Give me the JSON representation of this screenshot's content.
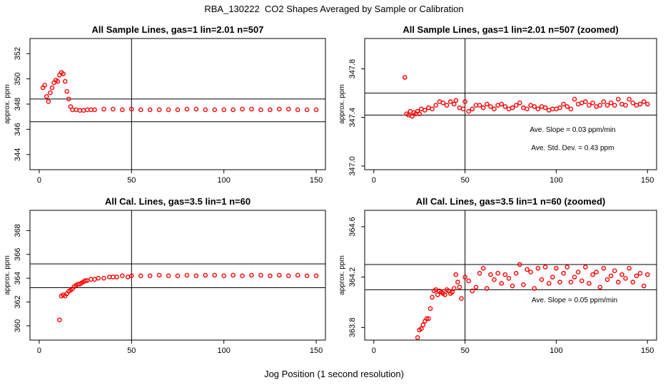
{
  "page": {
    "title": "RBA_130222  CO2 Shapes Averaged by Sample or Calibration",
    "xlabel": "Jog Position (1 second resolution)"
  },
  "colors": {
    "points": "#ff0000",
    "lines": "#000000"
  },
  "chart_data": [
    {
      "type": "scatter",
      "title": "All Sample Lines, gas=1 lin=2.01 n=507",
      "ylabel": "approx. ppm",
      "xlim": [
        -5,
        155
      ],
      "ylim": [
        342.8,
        353.2
      ],
      "xticks": [
        0,
        50,
        100,
        150
      ],
      "yticks": [
        344,
        346,
        348,
        350,
        352
      ],
      "hlines": [
        348.4,
        346.6
      ],
      "vline": 50,
      "x": [
        2,
        3,
        4,
        5,
        6,
        7,
        8,
        9,
        10,
        11,
        12,
        13,
        14,
        15,
        16,
        17,
        18,
        20,
        22,
        24,
        26,
        28,
        30,
        35,
        40,
        45,
        50,
        55,
        60,
        65,
        70,
        75,
        80,
        85,
        90,
        95,
        100,
        105,
        110,
        115,
        120,
        125,
        130,
        135,
        140,
        145,
        150
      ],
      "y": [
        349.3,
        349.5,
        348.6,
        348.2,
        348.9,
        349.3,
        349.7,
        349.9,
        349.8,
        350.3,
        350.5,
        350.4,
        349.8,
        349.0,
        348.4,
        347.8,
        347.55,
        347.55,
        347.5,
        347.5,
        347.55,
        347.55,
        347.55,
        347.6,
        347.6,
        347.55,
        347.6,
        347.55,
        347.55,
        347.55,
        347.55,
        347.55,
        347.6,
        347.6,
        347.55,
        347.55,
        347.55,
        347.55,
        347.6,
        347.6,
        347.55,
        347.55,
        347.6,
        347.6,
        347.55,
        347.55,
        347.55
      ],
      "annotations": []
    },
    {
      "type": "scatter",
      "title": "All Sample Lines, gas=1 lin=2.01 n=507 (zoomed)",
      "ylabel": "approx. ppm",
      "xlim": [
        -5,
        155
      ],
      "ylim": [
        346.97,
        348.05
      ],
      "xticks": [
        0,
        50,
        100,
        150
      ],
      "yticks": [
        347.0,
        347.4,
        347.8
      ],
      "ytick_labels": [
        "347.0",
        "347.4",
        "347.8"
      ],
      "hlines": [
        347.6,
        347.42
      ],
      "vline": 50,
      "x": [
        17,
        18,
        19,
        20,
        21,
        22,
        23,
        24,
        25,
        26,
        28,
        30,
        32,
        34,
        36,
        38,
        40,
        42,
        44,
        45,
        47,
        49,
        50,
        52,
        54,
        56,
        58,
        60,
        62,
        64,
        66,
        68,
        70,
        72,
        74,
        76,
        78,
        80,
        82,
        84,
        86,
        88,
        90,
        92,
        94,
        96,
        98,
        100,
        102,
        104,
        106,
        108,
        110,
        112,
        114,
        116,
        118,
        120,
        122,
        124,
        126,
        128,
        130,
        132,
        134,
        136,
        138,
        140,
        142,
        144,
        146,
        148,
        150
      ],
      "y": [
        347.73,
        347.43,
        347.42,
        347.45,
        347.41,
        347.44,
        347.43,
        347.45,
        347.43,
        347.47,
        347.46,
        347.48,
        347.47,
        347.5,
        347.53,
        347.52,
        347.5,
        347.53,
        347.51,
        347.54,
        347.48,
        347.47,
        347.53,
        347.45,
        347.47,
        347.5,
        347.5,
        347.48,
        347.51,
        347.49,
        347.47,
        347.5,
        347.51,
        347.49,
        347.47,
        347.48,
        347.5,
        347.52,
        347.48,
        347.47,
        347.5,
        347.49,
        347.47,
        347.49,
        347.48,
        347.46,
        347.47,
        347.47,
        347.48,
        347.51,
        347.49,
        347.47,
        347.55,
        347.51,
        347.52,
        347.53,
        347.5,
        347.52,
        347.49,
        347.5,
        347.53,
        347.5,
        347.52,
        347.5,
        347.55,
        347.51,
        347.5,
        347.55,
        347.52,
        347.5,
        347.51,
        347.53,
        347.51
      ],
      "annotations": [
        {
          "text": "Ave. Slope =  0.03  ppm/min",
          "x": 109,
          "y": 347.28
        },
        {
          "text": "Ave. Std. Dev. =  0.43  ppm",
          "x": 109,
          "y": 347.13
        }
      ]
    },
    {
      "type": "scatter",
      "title": "All Cal. Lines, gas=3.5 lin=1 n=60",
      "ylabel": "approx. ppm",
      "xlim": [
        -5,
        155
      ],
      "ylim": [
        358.8,
        369.7
      ],
      "xticks": [
        0,
        50,
        100,
        150
      ],
      "yticks": [
        360,
        362,
        364,
        366,
        368
      ],
      "hlines": [
        365.2,
        363.2
      ],
      "vline": 50,
      "x": [
        11,
        12,
        13,
        14,
        15,
        16,
        17,
        18,
        19,
        20,
        21,
        22,
        23,
        24,
        25,
        26,
        28,
        30,
        32,
        35,
        38,
        40,
        42,
        45,
        48,
        50,
        55,
        60,
        65,
        70,
        75,
        80,
        85,
        90,
        95,
        100,
        105,
        110,
        115,
        120,
        125,
        130,
        135,
        140,
        145,
        150
      ],
      "y": [
        360.5,
        362.5,
        362.6,
        362.5,
        362.7,
        362.9,
        363.0,
        363.1,
        363.3,
        363.4,
        363.5,
        363.5,
        363.6,
        363.7,
        363.8,
        363.8,
        363.9,
        363.9,
        364.0,
        364.0,
        364.1,
        364.1,
        364.1,
        364.2,
        364.1,
        364.2,
        364.2,
        364.2,
        364.25,
        364.2,
        364.2,
        364.25,
        364.2,
        364.25,
        364.25,
        364.2,
        364.25,
        364.2,
        364.25,
        364.25,
        364.2,
        364.25,
        364.2,
        364.25,
        364.2,
        364.2
      ],
      "annotations": []
    },
    {
      "type": "scatter",
      "title": "All Cal. Lines, gas=3.5 lin=1 n=60 (zoomed)",
      "ylabel": "approx. ppm",
      "xlim": [
        -5,
        155
      ],
      "ylim": [
        363.7,
        364.73
      ],
      "xticks": [
        0,
        50,
        100,
        150
      ],
      "yticks": [
        363.8,
        364.2,
        364.6
      ],
      "ytick_labels": [
        "363.8",
        "364.2",
        "364.6"
      ],
      "hlines": [
        364.3,
        364.1
      ],
      "vline": 50,
      "x": [
        24,
        25,
        26,
        27,
        28,
        29,
        30,
        31,
        32,
        33,
        34,
        35,
        36,
        37,
        38,
        39,
        40,
        41,
        42,
        43,
        44,
        45,
        46,
        47,
        48,
        50,
        52,
        54,
        56,
        58,
        60,
        62,
        64,
        66,
        68,
        70,
        72,
        74,
        76,
        78,
        80,
        82,
        84,
        86,
        88,
        90,
        92,
        94,
        96,
        98,
        100,
        102,
        104,
        106,
        108,
        110,
        112,
        114,
        116,
        118,
        120,
        122,
        124,
        126,
        128,
        130,
        132,
        134,
        136,
        138,
        140,
        142,
        144,
        146,
        148,
        150
      ],
      "y": [
        363.72,
        363.78,
        363.79,
        363.82,
        363.85,
        363.87,
        363.87,
        363.95,
        364.04,
        364.09,
        364.1,
        364.06,
        364.09,
        364.08,
        364.07,
        364.06,
        364.1,
        364.09,
        364.07,
        364.08,
        364.11,
        364.22,
        364.16,
        364.12,
        364.03,
        364.2,
        364.17,
        364.09,
        364.12,
        364.23,
        364.27,
        364.11,
        364.22,
        364.18,
        364.23,
        364.15,
        364.22,
        364.19,
        364.13,
        364.23,
        364.3,
        364.14,
        364.26,
        364.24,
        364.11,
        364.27,
        364.18,
        364.28,
        364.15,
        364.2,
        364.27,
        364.16,
        364.23,
        364.28,
        364.16,
        364.2,
        364.24,
        364.17,
        364.28,
        364.15,
        364.22,
        364.24,
        364.12,
        364.27,
        364.18,
        364.21,
        364.25,
        364.16,
        364.22,
        364.19,
        364.27,
        364.16,
        364.21,
        364.23,
        364.13,
        364.22
      ],
      "annotations": [
        {
          "text": "Ave. Slope =  0.05  ppm/min",
          "x": 110,
          "y": 364.0
        }
      ]
    }
  ]
}
